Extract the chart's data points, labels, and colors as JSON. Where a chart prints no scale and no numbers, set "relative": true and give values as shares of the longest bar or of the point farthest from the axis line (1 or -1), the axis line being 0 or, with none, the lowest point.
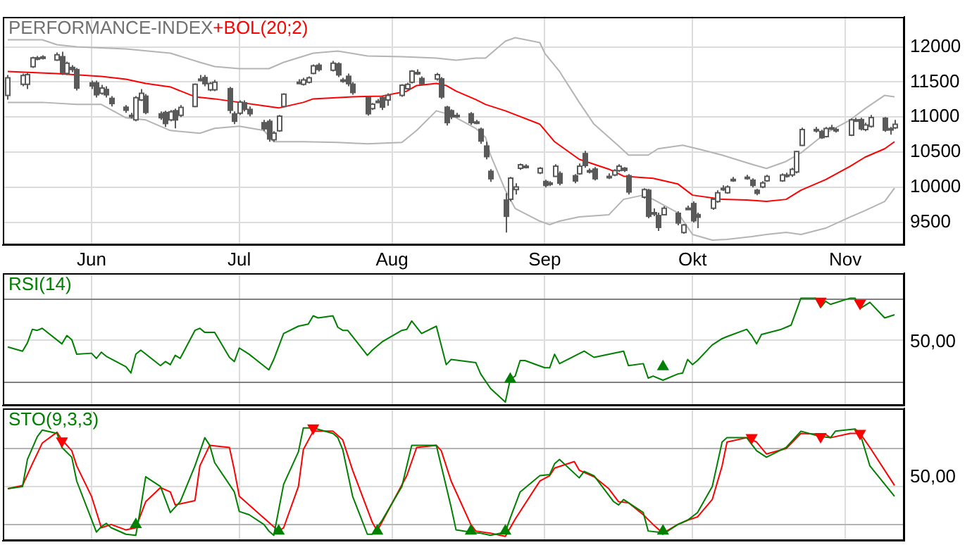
{
  "chart_data": [
    {
      "type": "candlestick",
      "title": "PERFORMANCE-INDEX",
      "subtitle": "+BOL(20;2)",
      "x": [
        "--05-15",
        "--05-18",
        "--05-19",
        "--05-20",
        "--05-21",
        "--05-22",
        "--05-25",
        "--05-26",
        "--05-27",
        "--05-28",
        "--05-29",
        "--06-01",
        "--06-02",
        "--06-03",
        "--06-04",
        "--06-05",
        "--06-08",
        "--06-09",
        "--06-10",
        "--06-11",
        "--06-12",
        "--06-15",
        "--06-16",
        "--06-17",
        "--06-18",
        "--06-19",
        "--06-22",
        "--06-23",
        "--06-24",
        "--06-25",
        "--06-26",
        "--06-29",
        "--06-30",
        "--07-01",
        "--07-02",
        "--07-03",
        "--07-06",
        "--07-07",
        "--07-08",
        "--07-09",
        "--07-10",
        "--07-13",
        "--07-14",
        "--07-15",
        "--07-16",
        "--07-17",
        "--07-20",
        "--07-21",
        "--07-22",
        "--07-23",
        "--07-24",
        "--07-27",
        "--07-28",
        "--07-29",
        "--07-30",
        "--07-31",
        "--08-03",
        "--08-04",
        "--08-05",
        "--08-06",
        "--08-07",
        "--08-10",
        "--08-11",
        "--08-12",
        "--08-13",
        "--08-14",
        "--08-17",
        "--08-18",
        "--08-19",
        "--08-20",
        "--08-21",
        "--08-24",
        "--08-25",
        "--08-26",
        "--08-27",
        "--08-28",
        "--08-31",
        "--09-01",
        "--09-02",
        "--09-03",
        "--09-04",
        "--09-07",
        "--09-08",
        "--09-09",
        "--09-10",
        "--09-11",
        "--09-14",
        "--09-15",
        "--09-16",
        "--09-17",
        "--09-18",
        "--09-21",
        "--09-22",
        "--09-23",
        "--09-24",
        "--09-25",
        "--09-28",
        "--09-29",
        "--09-30",
        "--10-01",
        "--10-02",
        "--10-05",
        "--10-06",
        "--10-07",
        "--10-08",
        "--10-09",
        "--10-12",
        "--10-13",
        "--10-14",
        "--10-15",
        "--10-16",
        "--10-19",
        "--10-20",
        "--10-21",
        "--10-22",
        "--10-23",
        "--10-26",
        "--10-27",
        "--10-28",
        "--10-29",
        "--10-30",
        "--11-02",
        "--11-03",
        "--11-04",
        "--11-05",
        "--11-06",
        "--11-09",
        "--11-10",
        "--11-11"
      ],
      "ohlc": [
        [
          11308,
          11600,
          11250,
          11560
        ],
        [
          11466,
          11620,
          11440,
          11591
        ],
        [
          11466,
          11640,
          11400,
          11604
        ],
        [
          11717,
          11860,
          11700,
          11843
        ],
        [
          11830,
          11870,
          11810,
          11843
        ],
        [
          11840,
          11880,
          11820,
          11856
        ],
        [
          11812,
          11920,
          11800,
          11887
        ],
        [
          11870,
          11930,
          11600,
          11623
        ],
        [
          11623,
          11790,
          11600,
          11768
        ],
        [
          11717,
          11740,
          11640,
          11667
        ],
        [
          11686,
          11700,
          11380,
          11403
        ],
        [
          11497,
          11520,
          11400,
          11434
        ],
        [
          11497,
          11520,
          11280,
          11308
        ],
        [
          11340,
          11460,
          11320,
          11415
        ],
        [
          11403,
          11440,
          11280,
          11308
        ],
        [
          11277,
          11300,
          11150,
          11183
        ],
        [
          11151,
          11170,
          11060,
          11088
        ],
        [
          11020,
          11060,
          10980,
          11025
        ],
        [
          10962,
          11300,
          10940,
          11277
        ],
        [
          11245,
          11400,
          11230,
          11340
        ],
        [
          11308,
          11330,
          11040,
          11057
        ],
        [
          11057,
          11080,
          10960,
          10981
        ],
        [
          11076,
          11090,
          10860,
          10899
        ],
        [
          10962,
          11100,
          10940,
          11076
        ],
        [
          11101,
          11120,
          10840,
          10950
        ],
        [
          11025,
          11170,
          11000,
          11139
        ],
        [
          11151,
          11480,
          11140,
          11466
        ],
        [
          11530,
          11600,
          11510,
          11541
        ],
        [
          11573,
          11600,
          11440,
          11466
        ],
        [
          11390,
          11500,
          11370,
          11478
        ],
        [
          11390,
          11530,
          11370,
          11497
        ],
        [
          11415,
          11430,
          11050,
          11088
        ],
        [
          11057,
          11080,
          10900,
          10931
        ],
        [
          11057,
          11240,
          11030,
          11214
        ],
        [
          11214,
          11240,
          11080,
          11101
        ],
        [
          11120,
          11150,
          11010,
          11038
        ],
        [
          10931,
          10960,
          10800,
          10824
        ],
        [
          10950,
          10970,
          10650,
          10679
        ],
        [
          10679,
          10800,
          10650,
          10774
        ],
        [
          10805,
          11030,
          10790,
          11013
        ],
        [
          11151,
          11340,
          11140,
          11327
        ],
        [
          11490,
          11540,
          11470,
          11497
        ],
        [
          11466,
          11560,
          11450,
          11529
        ],
        [
          11497,
          11580,
          11480,
          11560
        ],
        [
          11623,
          11750,
          11610,
          11730
        ],
        [
          11749,
          11770,
          11650,
          11667
        ],
        [
          11667,
          11800,
          11650,
          11768
        ],
        [
          11768,
          11780,
          11570,
          11591
        ],
        [
          11520,
          11560,
          11490,
          11529
        ],
        [
          11591,
          11620,
          11440,
          11466
        ],
        [
          11478,
          11500,
          11320,
          11340
        ],
        [
          11289,
          11300,
          11020,
          11038
        ],
        [
          11120,
          11200,
          11100,
          11183
        ],
        [
          11220,
          11260,
          11200,
          11227
        ],
        [
          11289,
          11300,
          11100,
          11132
        ],
        [
          11245,
          11340,
          11160,
          11308
        ],
        [
          11308,
          11470,
          11290,
          11453
        ],
        [
          11403,
          11490,
          11390,
          11466
        ],
        [
          11497,
          11670,
          11480,
          11654
        ],
        [
          11630,
          11680,
          11600,
          11635
        ],
        [
          11560,
          11580,
          11450,
          11466
        ],
        [
          11541,
          11630,
          11520,
          11604
        ],
        [
          11554,
          11570,
          11260,
          11277
        ],
        [
          11151,
          11160,
          10880,
          10912
        ],
        [
          11101,
          11110,
          10970,
          10994
        ],
        [
          11020,
          11060,
          10990,
          11025
        ],
        [
          11057,
          11070,
          10890,
          10912
        ],
        [
          10930,
          10960,
          10900,
          10931
        ],
        [
          10837,
          10850,
          10620,
          10650
        ],
        [
          10598,
          10650,
          10400,
          10428
        ],
        [
          10239,
          10260,
          10080,
          10113
        ],
        [
          9830,
          9920,
          9359,
          9579
        ],
        [
          9830,
          10150,
          9800,
          10132
        ],
        [
          9970,
          10060,
          9900,
          10006
        ],
        [
          10271,
          10340,
          10250,
          10321
        ],
        [
          10300,
          10330,
          10270,
          10302
        ],
        [
          10208,
          10290,
          10190,
          10271
        ],
        [
          10094,
          10110,
          10000,
          10019
        ],
        [
          10060,
          10090,
          10020,
          10063
        ],
        [
          10157,
          10330,
          10150,
          10302
        ],
        [
          10208,
          10230,
          10030,
          10050
        ],
        [
          10176,
          10190,
          10060,
          10082
        ],
        [
          10195,
          10340,
          10180,
          10302
        ],
        [
          10491,
          10520,
          10280,
          10302
        ],
        [
          10235,
          10270,
          10200,
          10239
        ],
        [
          10271,
          10290,
          10100,
          10113
        ],
        [
          10155,
          10200,
          10120,
          10157
        ],
        [
          10176,
          10260,
          10160,
          10239
        ],
        [
          10239,
          10330,
          10220,
          10302
        ],
        [
          10283,
          10290,
          10220,
          10233
        ],
        [
          10176,
          10190,
          9900,
          9925
        ],
        [
          9862,
          9990,
          9840,
          9969
        ],
        [
          9969,
          9980,
          9560,
          9579
        ],
        [
          9640,
          9700,
          9590,
          9641
        ],
        [
          9610,
          9640,
          9380,
          9421
        ],
        [
          9610,
          9730,
          9600,
          9704
        ],
        [
          9641,
          9660,
          9460,
          9484
        ],
        [
          9359,
          9480,
          9340,
          9465
        ],
        [
          9700,
          9740,
          9680,
          9704
        ],
        [
          9780,
          9800,
          9500,
          9516
        ],
        [
          9623,
          9640,
          9420,
          9566
        ],
        [
          9704,
          9850,
          9680,
          9830
        ],
        [
          9799,
          9960,
          9780,
          9925
        ],
        [
          9985,
          10030,
          9950,
          9987
        ],
        [
          9925,
          10030,
          9910,
          10006
        ],
        [
          10110,
          10150,
          10080,
          10113
        ],
        [
          10140,
          10180,
          10110,
          10145
        ],
        [
          10113,
          10130,
          10000,
          10019
        ],
        [
          9969,
          9980,
          9890,
          9906
        ],
        [
          10006,
          10090,
          9990,
          10063
        ],
        [
          10094,
          10180,
          10080,
          10157
        ],
        [
          10094,
          10200,
          10080,
          10176
        ],
        [
          10170,
          10210,
          10140,
          10176
        ],
        [
          10176,
          10280,
          10150,
          10258
        ],
        [
          10220,
          10520,
          10200,
          10510
        ],
        [
          10598,
          10850,
          10590,
          10824
        ],
        [
          10820,
          10860,
          10780,
          10824
        ],
        [
          10805,
          10820,
          10690,
          10698
        ],
        [
          10723,
          10860,
          10710,
          10837
        ],
        [
          10845,
          10890,
          10820,
          10849
        ],
        [
          10820,
          10850,
          10780,
          10824
        ],
        [
          10742,
          10980,
          10730,
          10962
        ],
        [
          10960,
          10990,
          10930,
          10962
        ],
        [
          10975,
          10990,
          10810,
          10824
        ],
        [
          10824,
          10920,
          10800,
          10887
        ],
        [
          10868,
          11030,
          10850,
          10994
        ],
        [
          10994,
          11000,
          10790,
          10805
        ],
        [
          10835,
          10860,
          10750,
          10837
        ],
        [
          10849,
          10960,
          10830,
          10899
        ]
      ],
      "series": [
        {
          "type": "line",
          "color": "#b4b4b4",
          "x": [
            "--05-15",
            "--05-22",
            "--05-25",
            "--05-29",
            "--06-08",
            "--06-17",
            "--06-23",
            "--06-26",
            "--07-01",
            "--07-07",
            "--07-10",
            "--07-16",
            "--07-21",
            "--07-27",
            "--08-03",
            "--08-10",
            "--08-14",
            "--08-18",
            "--08-20",
            "--08-24",
            "--08-26",
            "--08-31",
            "--09-01",
            "--09-04",
            "--09-08",
            "--09-11",
            "--09-16",
            "--09-18",
            "--09-22",
            "--09-24",
            "--09-29",
            "--10-02",
            "--10-07",
            "--10-13",
            "--10-16",
            "--10-20",
            "--10-23",
            "--10-28",
            "--11-02",
            "--11-05",
            "--11-09",
            "--11-11"
          ],
          "values": [
            12100,
            12100,
            12030,
            12000,
            11970,
            11910,
            11780,
            11720,
            11690,
            11690,
            11780,
            11910,
            11940,
            11870,
            11860,
            11840,
            11810,
            11840,
            11840,
            12080,
            12130,
            12060,
            11910,
            11650,
            11210,
            10900,
            10590,
            10460,
            10460,
            10550,
            10600,
            10550,
            10460,
            10330,
            10270,
            10370,
            10490,
            10770,
            10960,
            11120,
            11310,
            11290
          ]
        },
        {
          "type": "line",
          "color": "#ff0000",
          "x": [
            "--05-15",
            "--05-25",
            "--06-03",
            "--06-08",
            "--06-12",
            "--06-17",
            "--06-22",
            "--06-26",
            "--07-01",
            "--07-07",
            "--07-09",
            "--07-14",
            "--07-16",
            "--07-24",
            "--07-30",
            "--08-04",
            "--08-06",
            "--08-10",
            "--08-12",
            "--08-14",
            "--08-18",
            "--08-20",
            "--08-24",
            "--08-31",
            "--09-03",
            "--09-08",
            "--09-14",
            "--09-17",
            "--09-23",
            "--09-28",
            "--10-01",
            "--10-07",
            "--10-12",
            "--10-16",
            "--10-20",
            "--10-23",
            "--10-28",
            "--11-02",
            "--11-05",
            "--11-09",
            "--11-11"
          ],
          "values": [
            11650,
            11620,
            11580,
            11540,
            11480,
            11430,
            11290,
            11260,
            11210,
            11150,
            11130,
            11210,
            11260,
            11290,
            11300,
            11370,
            11450,
            11480,
            11450,
            11370,
            11250,
            11180,
            11090,
            10900,
            10650,
            10400,
            10260,
            10160,
            10130,
            10050,
            9890,
            9830,
            9820,
            9800,
            9830,
            9960,
            10110,
            10300,
            10430,
            10550,
            10650
          ]
        },
        {
          "type": "line",
          "color": "#b4b4b4",
          "x": [
            "--05-15",
            "--05-22",
            "--05-29",
            "--06-03",
            "--06-08",
            "--06-12",
            "--06-17",
            "--06-23",
            "--06-26",
            "--07-01",
            "--07-06",
            "--07-08",
            "--07-14",
            "--07-21",
            "--07-27",
            "--08-03",
            "--08-06",
            "--08-10",
            "--08-13",
            "--08-18",
            "--08-20",
            "--08-21",
            "--08-24",
            "--08-26",
            "--08-31",
            "--09-02",
            "--09-04",
            "--09-08",
            "--09-14",
            "--09-17",
            "--09-21",
            "--09-23",
            "--09-28",
            "--10-01",
            "--10-05",
            "--10-08",
            "--10-13",
            "--10-16",
            "--10-20",
            "--10-23",
            "--10-28",
            "--11-02",
            "--11-05",
            "--11-09",
            "--11-11"
          ],
          "values": [
            11210,
            11210,
            11180,
            11180,
            10990,
            10960,
            10810,
            10770,
            10840,
            10870,
            10810,
            10650,
            10650,
            10640,
            10620,
            10640,
            10810,
            11090,
            11030,
            10840,
            10710,
            10460,
            9960,
            9700,
            9520,
            9470,
            9520,
            9580,
            9610,
            9830,
            9890,
            9830,
            9640,
            9330,
            9250,
            9260,
            9300,
            9330,
            9360,
            9330,
            9420,
            9580,
            9670,
            9800,
            9990
          ]
        }
      ],
      "xlim": [
        "--05-14",
        "--11-13"
      ],
      "xticks": [
        {
          "value": "--06-01",
          "label": "Jun"
        },
        {
          "value": "--07-01",
          "label": "Jul"
        },
        {
          "value": "--08-01",
          "label": "Aug"
        },
        {
          "value": "--09-01",
          "label": "Sep"
        },
        {
          "value": "--10-01",
          "label": "Okt"
        },
        {
          "value": "--11-01",
          "label": "Nov"
        }
      ],
      "ylim": [
        9180,
        12430
      ],
      "yticks": [
        9500,
        10000,
        10500,
        11000,
        11500,
        12000
      ],
      "grid": true
    },
    {
      "type": "line",
      "title": "RSI(14)",
      "relative": true,
      "series": [
        {
          "color": "#008000",
          "x": [
            "--05-15",
            "--05-18",
            "--05-19",
            "--05-20",
            "--05-21",
            "--05-22",
            "--05-26",
            "--05-27",
            "--05-28",
            "--05-29",
            "--06-01",
            "--06-02",
            "--06-03",
            "--06-04",
            "--06-08",
            "--06-09",
            "--06-10",
            "--06-11",
            "--06-15",
            "--06-16",
            "--06-17",
            "--06-18",
            "--06-19",
            "--06-22",
            "--06-23",
            "--06-24",
            "--06-26",
            "--06-29",
            "--06-30",
            "--07-01",
            "--07-02",
            "--07-03",
            "--07-07",
            "--07-08",
            "--07-10",
            "--07-13",
            "--07-15",
            "--07-16",
            "--07-17",
            "--07-20",
            "--07-21",
            "--07-22",
            "--07-23",
            "--07-27",
            "--07-28",
            "--07-30",
            "--08-03",
            "--08-04",
            "--08-05",
            "--08-07",
            "--08-10",
            "--08-12",
            "--08-13",
            "--08-18",
            "--08-19",
            "--08-21",
            "--08-24",
            "--08-25",
            "--08-26",
            "--08-27",
            "--08-28",
            "--09-01",
            "--09-02",
            "--09-03",
            "--09-04",
            "--09-09",
            "--09-11",
            "--09-17",
            "--09-18",
            "--09-21",
            "--09-22",
            "--09-23",
            "--09-25",
            "--09-28",
            "--09-29",
            "--09-30",
            "--10-01",
            "--10-02",
            "--10-05",
            "--10-07",
            "--10-08",
            "--10-12",
            "--10-13",
            "--10-14",
            "--10-15",
            "--10-19",
            "--10-20",
            "--10-21",
            "--10-23",
            "--10-26",
            "--10-27",
            "--10-28",
            "--10-29",
            "--11-02",
            "--11-03",
            "--11-04",
            "--11-06",
            "--11-09",
            "--11-11"
          ],
          "values": [
            0.53,
            0.49,
            0.57,
            0.7,
            0.69,
            0.71,
            0.56,
            0.64,
            0.6,
            0.46,
            0.47,
            0.42,
            0.48,
            0.44,
            0.34,
            0.28,
            0.46,
            0.5,
            0.35,
            0.39,
            0.36,
            0.45,
            0.42,
            0.69,
            0.71,
            0.67,
            0.67,
            0.43,
            0.39,
            0.52,
            0.49,
            0.46,
            0.31,
            0.41,
            0.66,
            0.73,
            0.75,
            0.83,
            0.81,
            0.83,
            0.72,
            0.69,
            0.69,
            0.45,
            0.5,
            0.58,
            0.69,
            0.7,
            0.78,
            0.66,
            0.73,
            0.36,
            0.41,
            0.38,
            0.27,
            0.13,
            0,
            0.22,
            0.25,
            0.4,
            0.4,
            0.33,
            0.33,
            0.46,
            0.37,
            0.49,
            0.43,
            0.49,
            0.35,
            0.37,
            0.23,
            0.25,
            0.21,
            0.27,
            0.28,
            0.41,
            0.36,
            0.4,
            0.55,
            0.61,
            0.63,
            0.7,
            0.64,
            0.56,
            0.65,
            0.7,
            0.72,
            0.74,
            1,
            1,
            0.91,
            0.97,
            0.94,
            1,
            1,
            0.9,
            0.96,
            0.81,
            0.84
          ]
        },
        {
          "type": "scatter",
          "marker": "triangle",
          "color": "#008000",
          "x": [
            "--08-25",
            "--09-25"
          ],
          "values": [
            0.22,
            0.34
          ]
        },
        {
          "type": "scatter",
          "marker": "triangle",
          "color": "#ff0000",
          "x": [
            "--10-27",
            "--11-04"
          ],
          "values": [
            0.97,
            0.95
          ]
        }
      ],
      "xlim": [
        "--05-14",
        "--11-13"
      ],
      "xticks": [
        {
          "value": "--06-01",
          "label": null
        },
        {
          "value": "--07-01",
          "label": null
        },
        {
          "value": "--08-01",
          "label": null
        },
        {
          "value": "--09-01",
          "label": null
        },
        {
          "value": "--10-01",
          "label": null
        },
        {
          "value": "--11-01",
          "label": null
        }
      ],
      "grid": "x",
      "tick_labels": false,
      "ref_lines": [
        {
          "axis": "y",
          "value": 0.2,
          "color": "#808080"
        },
        {
          "axis": "y",
          "value": 0.6,
          "color": "#dcdcdc"
        },
        {
          "axis": "y",
          "value": 0.99,
          "color": "#808080"
        }
      ],
      "annotations": [
        "50,00"
      ]
    },
    {
      "type": "line",
      "title": "STO(9,3,3)",
      "relative": true,
      "series": [
        {
          "color": "#008000",
          "x": [
            "--05-15",
            "--05-18",
            "--05-19",
            "--05-21",
            "--05-22",
            "--05-25",
            "--05-26",
            "--05-28",
            "--05-29",
            "--06-02",
            "--06-03",
            "--06-04",
            "--06-05",
            "--06-08",
            "--06-10",
            "--06-11",
            "--06-12",
            "--06-15",
            "--06-17",
            "--06-19",
            "--06-22",
            "--06-24",
            "--06-25",
            "--06-26",
            "--06-30",
            "--07-01",
            "--07-03",
            "--07-06",
            "--07-07",
            "--07-08",
            "--07-10",
            "--07-13",
            "--07-14",
            "--07-16",
            "--07-20",
            "--07-21",
            "--07-22",
            "--07-24",
            "--07-27",
            "--07-28",
            "--07-30",
            "--08-03",
            "--08-05",
            "--08-06",
            "--08-10",
            "--08-11",
            "--08-13",
            "--08-14",
            "--08-17",
            "--08-19",
            "--08-21",
            "--08-24",
            "--08-25",
            "--08-27",
            "--08-31",
            "--09-02",
            "--09-03",
            "--09-04",
            "--09-08",
            "--09-09",
            "--09-11",
            "--09-15",
            "--09-16",
            "--09-17",
            "--09-21",
            "--09-22",
            "--09-24",
            "--09-25",
            "--09-28",
            "--09-30",
            "--10-02",
            "--10-05",
            "--10-07",
            "--10-08",
            "--10-12",
            "--10-14",
            "--10-16",
            "--10-20",
            "--10-23",
            "--10-27",
            "--10-29",
            "--10-30",
            "--11-03",
            "--11-04",
            "--11-06",
            "--11-11"
          ],
          "values": [
            0.44,
            0.46,
            0.71,
            0.92,
            0.98,
            0.95,
            0.82,
            0.73,
            0.51,
            0.04,
            0.09,
            0.12,
            0.08,
            0.02,
            0.01,
            0.27,
            0.55,
            0.46,
            0.22,
            0.32,
            0.65,
            0.91,
            0.84,
            0.68,
            0.41,
            0.23,
            0.2,
            0.11,
            0.05,
            0.01,
            0.48,
            0.78,
            1,
            1,
            0.95,
            0.91,
            0.8,
            0.37,
            0.02,
            0.02,
            0.15,
            0.46,
            0.84,
            0.84,
            0.84,
            0.65,
            0.27,
            0.06,
            0.04,
            0.03,
            0.01,
            0.04,
            0.17,
            0.41,
            0.56,
            0.57,
            0.67,
            0.71,
            0.54,
            0.6,
            0.56,
            0.32,
            0.29,
            0.34,
            0.22,
            0.05,
            0.04,
            0.02,
            0.11,
            0.15,
            0.22,
            0.46,
            0.87,
            0.91,
            0.91,
            0.79,
            0.73,
            0.82,
            0.97,
            0.92,
            0.91,
            0.97,
            0.99,
            0.95,
            0.65,
            0.37
          ]
        },
        {
          "color": "#ff0000",
          "x": [
            "--05-15",
            "--05-18",
            "--05-20",
            "--05-22",
            "--05-25",
            "--05-26",
            "--05-28",
            "--05-29",
            "--06-01",
            "--06-03",
            "--06-05",
            "--06-08",
            "--06-10",
            "--06-12",
            "--06-15",
            "--06-17",
            "--06-18",
            "--06-22",
            "--06-23",
            "--06-25",
            "--06-29",
            "--06-30",
            "--07-01",
            "--07-06",
            "--07-09",
            "--07-10",
            "--07-13",
            "--07-14",
            "--07-16",
            "--07-20",
            "--07-22",
            "--07-24",
            "--07-28",
            "--07-29",
            "--07-31",
            "--08-04",
            "--08-06",
            "--08-10",
            "--08-11",
            "--08-13",
            "--08-17",
            "--08-18",
            "--08-21",
            "--08-24",
            "--08-26",
            "--08-31",
            "--09-02",
            "--09-03",
            "--09-07",
            "--09-08",
            "--09-11",
            "--09-14",
            "--09-16",
            "--09-18",
            "--09-21",
            "--09-23",
            "--09-25",
            "--09-28",
            "--09-30",
            "--10-02",
            "--10-05",
            "--10-07",
            "--10-08",
            "--10-12",
            "--10-14",
            "--10-16",
            "--10-20",
            "--10-23",
            "--10-28",
            "--10-29",
            "--11-02",
            "--11-04",
            "--11-06",
            "--11-11"
          ],
          "values": [
            0.44,
            0.47,
            0.67,
            0.86,
            0.96,
            0.89,
            0.79,
            0.65,
            0.37,
            0.08,
            0.11,
            0.06,
            0.08,
            0.32,
            0.45,
            0.41,
            0.29,
            0.33,
            0.65,
            0.84,
            0.82,
            0.61,
            0.37,
            0.17,
            0.05,
            0.08,
            0.46,
            0.8,
            0.97,
            0.97,
            0.89,
            0.61,
            0.13,
            0.05,
            0.22,
            0.56,
            0.82,
            0.84,
            0.79,
            0.51,
            0.11,
            0.05,
            0.03,
            0,
            0.16,
            0.51,
            0.56,
            0.63,
            0.69,
            0.61,
            0.55,
            0.44,
            0.32,
            0.31,
            0.2,
            0.11,
            0.03,
            0.11,
            0.15,
            0.18,
            0.34,
            0.65,
            0.87,
            0.91,
            0.87,
            0.76,
            0.81,
            0.95,
            0.94,
            0.91,
            0.95,
            0.95,
            0.82,
            0.47
          ]
        },
        {
          "type": "scatter",
          "marker": "triangle",
          "color": "#008000",
          "x": [
            "--06-10",
            "--07-09",
            "--07-29",
            "--08-17",
            "--08-24",
            "--09-25"
          ],
          "values": [
            0.11,
            0.05,
            0.05,
            0.05,
            0.05,
            0.05
          ]
        },
        {
          "type": "scatter",
          "marker": "triangle",
          "color": "#ff0000",
          "x": [
            "--05-26",
            "--07-16",
            "--10-13",
            "--10-27",
            "--11-04"
          ],
          "values": [
            0.88,
            1,
            0.91,
            0.92,
            0.95
          ]
        }
      ],
      "xlim": [
        "--05-14",
        "--11-13"
      ],
      "xticks": [
        {
          "value": "--06-01",
          "label": null
        },
        {
          "value": "--07-01",
          "label": null
        },
        {
          "value": "--08-01",
          "label": null
        },
        {
          "value": "--09-01",
          "label": null
        },
        {
          "value": "--10-01",
          "label": null
        },
        {
          "value": "--11-01",
          "label": null
        }
      ],
      "grid": "x",
      "tick_labels": false,
      "ref_lines": [
        {
          "axis": "y",
          "value": 0.12,
          "color": "#b4b4b4"
        },
        {
          "axis": "y",
          "value": 0.47,
          "color": "#dcdcdc"
        },
        {
          "axis": "y",
          "value": 0.82,
          "color": "#b4b4b4"
        }
      ],
      "annotations": [
        "50,00"
      ]
    }
  ]
}
